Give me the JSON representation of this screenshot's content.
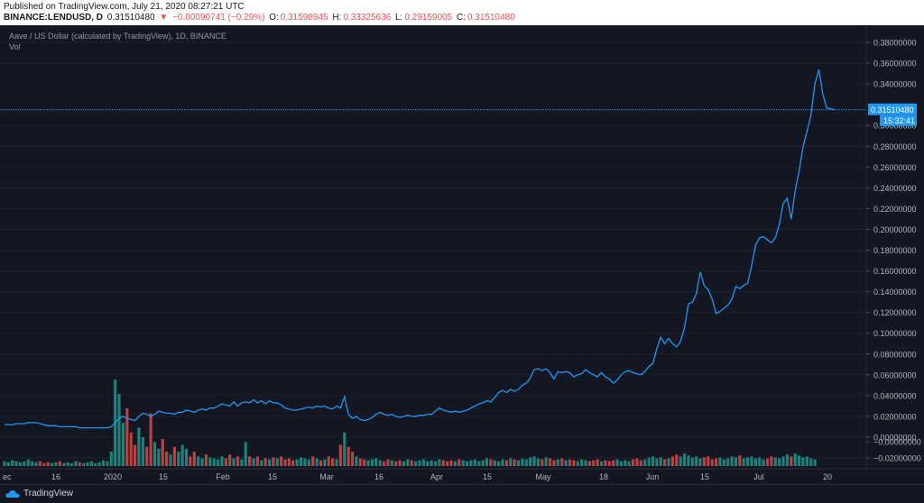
{
  "header": {
    "published": "Published on TradingView.com, July 21, 2020 08:27:21 UTC",
    "symbol": "BINANCE:LENDUSD, D",
    "last": "0.31510480",
    "change_arrow": "▼",
    "change": "−0.00090741 (−0.29%)",
    "o_label": "O:",
    "o_value": "0.31598945",
    "h_label": "H:",
    "h_value": "0.33325636",
    "l_label": "L:",
    "l_value": "0.29159005",
    "c_label": "C:",
    "c_value": "0.31510480"
  },
  "legend": {
    "title": "Aave / US Dollar (calculated by TradingView), 1D, BINANCE",
    "vol_label": "Vol"
  },
  "price_badge": {
    "value": "0.31510480",
    "countdown": "15:32:41"
  },
  "footer": {
    "brand": "TradingView"
  },
  "colors": {
    "background": "#131722",
    "line": "#2196f3",
    "vol_up": "#26a69a",
    "vol_down": "#ef5350",
    "axis_text": "#b2b5be",
    "badge": "#2196f3"
  },
  "chart_data": {
    "type": "line",
    "x_tick_labels": [
      "ec",
      "16",
      "2020",
      "15",
      "Feb",
      "15",
      "Mar",
      "16",
      "Apr",
      "15",
      "May",
      "18",
      "Jun",
      "15",
      "Jul",
      "20"
    ],
    "y_tick_labels": [
      "0.38000000",
      "0.36000000",
      "0.34000000",
      "0.30000000",
      "0.28000000",
      "0.26000000",
      "0.24000000",
      "0.22000000",
      "0.20000000",
      "0.18000000",
      "0.16000000",
      "0.14000000",
      "0.12000000",
      "0.10000000",
      "0.08000000",
      "0.06000000",
      "0.04000000",
      "0.02000000",
      "0.00000000",
      "−0.00000000",
      "−0.02000000"
    ],
    "ylim": [
      -0.024,
      0.392
    ],
    "current_price": 0.3151048,
    "series": [
      {
        "values": [
          0.012,
          0.012,
          0.012,
          0.013,
          0.013,
          0.013,
          0.014,
          0.014,
          0.014,
          0.013,
          0.012,
          0.011,
          0.011,
          0.011,
          0.01,
          0.01,
          0.01,
          0.01,
          0.01,
          0.009,
          0.009,
          0.009,
          0.009,
          0.009,
          0.009,
          0.009,
          0.009,
          0.01,
          0.014,
          0.018,
          0.02,
          0.018,
          0.017,
          0.016,
          0.02,
          0.023,
          0.022,
          0.02,
          0.022,
          0.025,
          0.024,
          0.023,
          0.023,
          0.022,
          0.024,
          0.024,
          0.026,
          0.025,
          0.024,
          0.026,
          0.027,
          0.026,
          0.028,
          0.028,
          0.03,
          0.032,
          0.031,
          0.03,
          0.034,
          0.03,
          0.033,
          0.034,
          0.033,
          0.036,
          0.033,
          0.035,
          0.032,
          0.035,
          0.033,
          0.033,
          0.031,
          0.028,
          0.027,
          0.026,
          0.026,
          0.027,
          0.028,
          0.029,
          0.028,
          0.03,
          0.029,
          0.03,
          0.028,
          0.027,
          0.03,
          0.028,
          0.039,
          0.022,
          0.018,
          0.02,
          0.017,
          0.016,
          0.017,
          0.019,
          0.022,
          0.024,
          0.022,
          0.021,
          0.022,
          0.02,
          0.019,
          0.02,
          0.021,
          0.02,
          0.02,
          0.021,
          0.021,
          0.022,
          0.022,
          0.025,
          0.028,
          0.026,
          0.025,
          0.024,
          0.025,
          0.024,
          0.025,
          0.026,
          0.028,
          0.03,
          0.032,
          0.033,
          0.035,
          0.034,
          0.038,
          0.043,
          0.045,
          0.043,
          0.046,
          0.044,
          0.046,
          0.05,
          0.052,
          0.057,
          0.065,
          0.066,
          0.064,
          0.066,
          0.062,
          0.056,
          0.063,
          0.062,
          0.063,
          0.062,
          0.058,
          0.06,
          0.061,
          0.065,
          0.062,
          0.06,
          0.058,
          0.062,
          0.058,
          0.056,
          0.052,
          0.055,
          0.06,
          0.063,
          0.064,
          0.062,
          0.061,
          0.06,
          0.063,
          0.068,
          0.071,
          0.085,
          0.096,
          0.09,
          0.095,
          0.09,
          0.087,
          0.092,
          0.105,
          0.128,
          0.13,
          0.138,
          0.159,
          0.146,
          0.142,
          0.133,
          0.119,
          0.121,
          0.124,
          0.127,
          0.133,
          0.145,
          0.143,
          0.146,
          0.148,
          0.165,
          0.185,
          0.192,
          0.193,
          0.19,
          0.187,
          0.192,
          0.205,
          0.225,
          0.23,
          0.21,
          0.237,
          0.256,
          0.28,
          0.294,
          0.31,
          0.34,
          0.354,
          0.33,
          0.317,
          0.316,
          0.3151
        ]
      }
    ],
    "volume": {
      "values": [
        0.5,
        0.4,
        0.6,
        0.5,
        0.4,
        0.5,
        0.7,
        0.5,
        0.4,
        0.5,
        0.3,
        0.4,
        0.3,
        0.4,
        0.5,
        0.3,
        0.4,
        0.3,
        0.5,
        0.4,
        0.3,
        0.4,
        0.5,
        0.3,
        0.4,
        0.6,
        0.5,
        1.5,
        9.0,
        7.5,
        4.5,
        6.0,
        3.5,
        2.2,
        4.0,
        3.0,
        2.0,
        5.5,
        2.5,
        1.8,
        2.8,
        1.5,
        1.2,
        2.0,
        1.5,
        2.2,
        1.8,
        1.0,
        1.5,
        1.0,
        0.8,
        1.2,
        0.9,
        0.8,
        0.7,
        1.0,
        0.8,
        1.2,
        0.8,
        1.0,
        0.7,
        2.5,
        1.0,
        0.8,
        1.0,
        0.6,
        0.8,
        0.7,
        0.9,
        0.8,
        1.0,
        0.7,
        0.8,
        0.6,
        0.7,
        0.9,
        0.8,
        0.7,
        1.0,
        0.8,
        0.6,
        0.7,
        1.0,
        0.8,
        0.7,
        2.2,
        3.5,
        2.0,
        1.5,
        1.0,
        0.8,
        0.7,
        0.6,
        0.7,
        0.8,
        0.6,
        0.5,
        0.7,
        0.6,
        0.5,
        0.6,
        0.5,
        0.7,
        0.6,
        0.5,
        0.6,
        0.7,
        0.5,
        0.6,
        0.5,
        0.7,
        0.6,
        0.5,
        0.6,
        0.5,
        0.7,
        0.6,
        0.5,
        0.6,
        0.7,
        0.5,
        0.6,
        0.8,
        0.7,
        0.6,
        0.5,
        0.7,
        0.6,
        0.8,
        0.7,
        0.6,
        0.8,
        0.7,
        0.9,
        1.0,
        0.8,
        0.7,
        0.9,
        0.8,
        0.6,
        0.7,
        0.8,
        0.6,
        0.7,
        0.6,
        0.5,
        0.7,
        0.6,
        0.5,
        0.6,
        0.7,
        0.5,
        0.6,
        0.5,
        0.6,
        0.7,
        0.5,
        0.6,
        0.5,
        0.7,
        0.8,
        0.6,
        0.7,
        0.9,
        1.0,
        0.8,
        0.9,
        0.7,
        0.8,
        1.0,
        1.2,
        1.0,
        1.3,
        1.1,
        0.9,
        1.0,
        0.8,
        0.9,
        1.0,
        0.7,
        0.8,
        0.9,
        0.7,
        0.8,
        1.0,
        0.9,
        1.1,
        0.8,
        0.9,
        1.0,
        0.8,
        0.9,
        0.7,
        0.8,
        1.0,
        0.9,
        0.8,
        1.0,
        1.2,
        1.0,
        1.3,
        1.1,
        0.9,
        1.0,
        0.8,
        0.7
      ]
    }
  }
}
